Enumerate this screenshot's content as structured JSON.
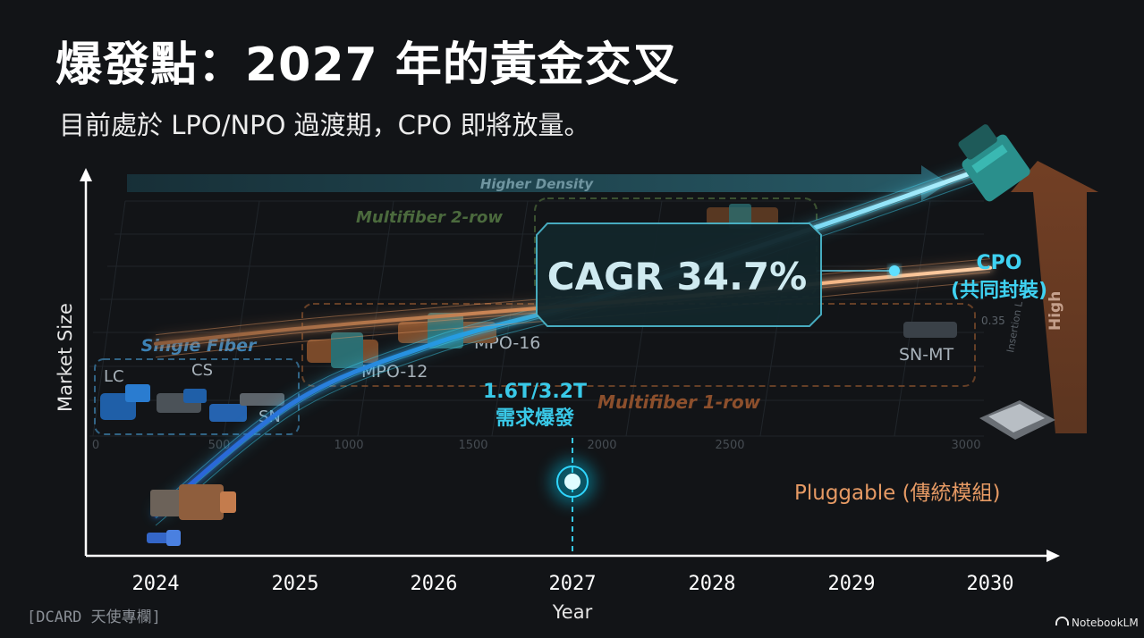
{
  "header": {
    "title": "爆發點：2027 年的黃金交叉",
    "subtitle": "目前處於 LPO/NPO 過渡期，CPO 即將放量。"
  },
  "footer": {
    "left": "[DCARD 天使專欄]",
    "right": "NotebookLM"
  },
  "illustration": {
    "density_arrow": "Higher Density",
    "loss_arrow": "High",
    "groups": {
      "single_fiber": "Single Fiber",
      "multifiber_2row": "Multifiber 2-row",
      "multifiber_1row": "Multifiber 1-row"
    },
    "connectors": [
      "LC",
      "CS",
      "SN",
      "MPO-12",
      "MPO-16",
      "SN-MT"
    ],
    "inset_ticks": [
      "0",
      "500",
      "1000",
      "1500",
      "2000",
      "2500",
      "3000"
    ],
    "inset_value": "0.35",
    "inset_axis": "Insertion L"
  },
  "chart_data": {
    "type": "line",
    "xlabel": "Year",
    "ylabel": "Market Size",
    "x": [
      "2024",
      "2025",
      "2026",
      "2027",
      "2028",
      "2029",
      "2030"
    ],
    "series": [
      {
        "name": "CPO\n(共同封裝)",
        "values": [
          2,
          12,
          30,
          55,
          110,
          230,
          500
        ],
        "color": "#3fd2f2"
      },
      {
        "name": "Pluggable (傳統模組)",
        "values": [
          30,
          38,
          46,
          55,
          66,
          82,
          100
        ],
        "color": "#e69a64"
      }
    ],
    "annotations": [
      {
        "text": "CAGR 34.7%"
      },
      {
        "text": "1.6T/3.2T\n需求爆發",
        "x": "2027"
      }
    ],
    "colors": {
      "cpo": "#3fd2f2",
      "pluggable": "#e69a64",
      "axis": "#ffffff",
      "highlight": "#00e5ff"
    }
  }
}
